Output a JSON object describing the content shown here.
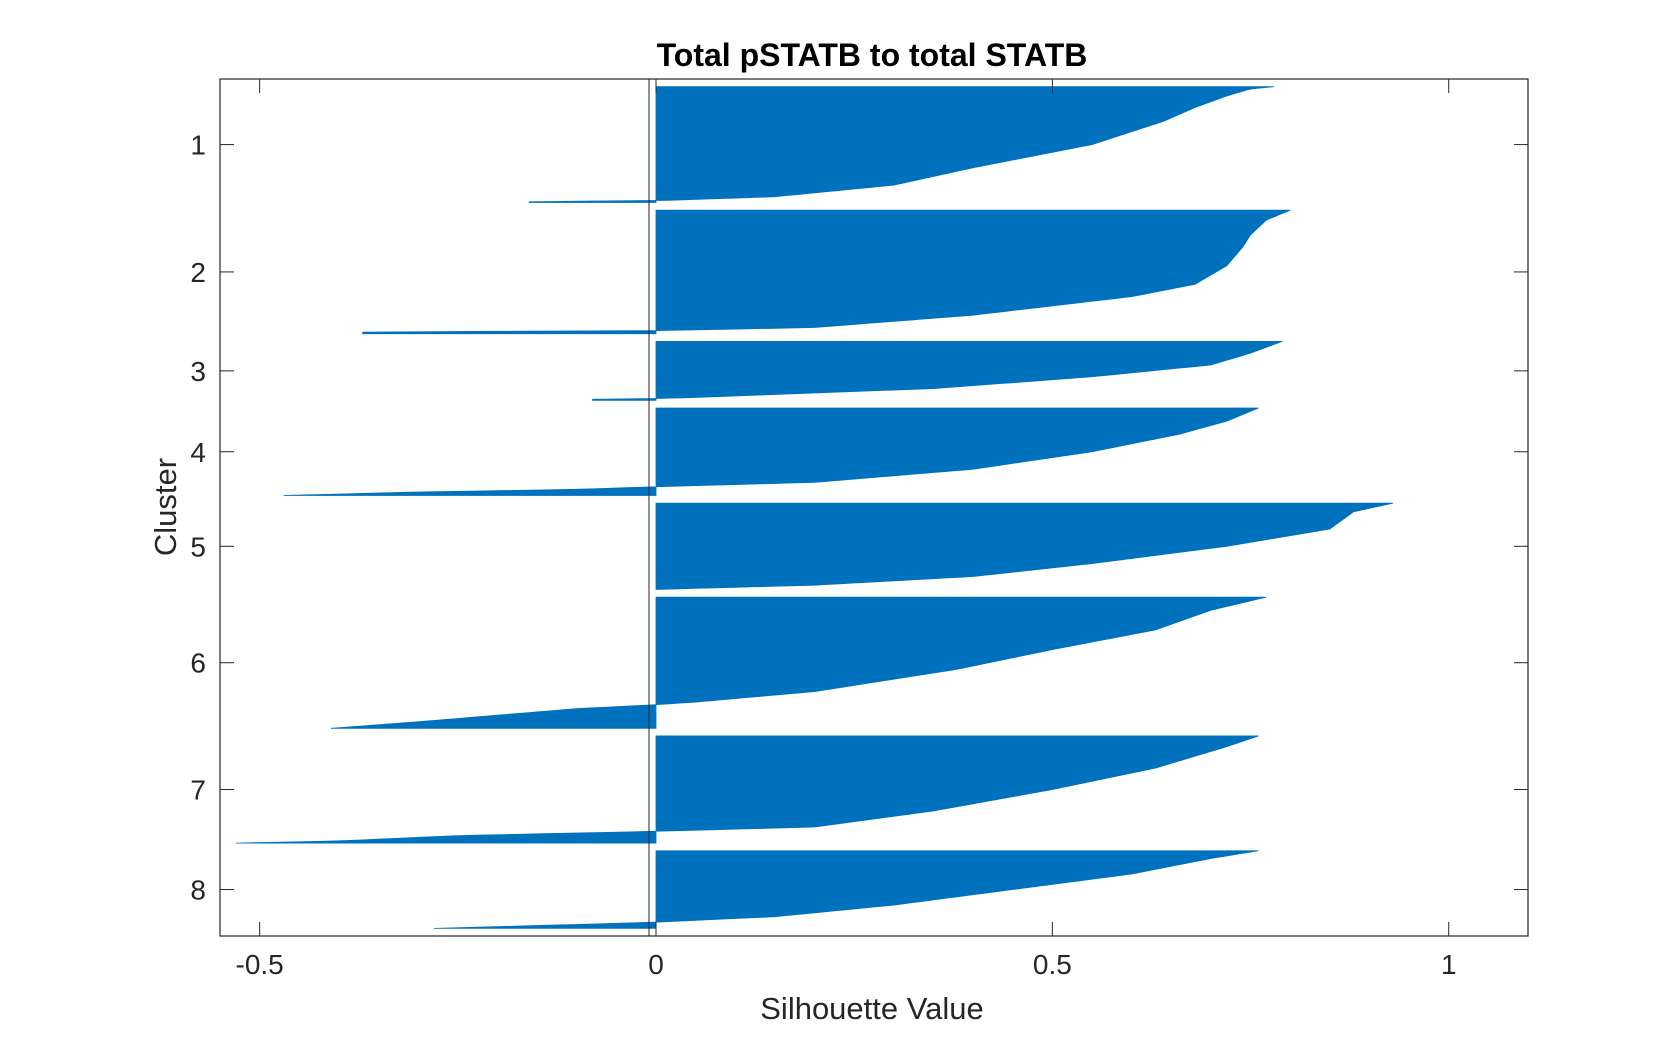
{
  "chart_data": {
    "type": "bar",
    "orientation": "horizontal",
    "title": "Total pSTATB to total STATB",
    "xlabel": "Silhouette Value",
    "ylabel": "Cluster",
    "xlim": [
      -0.55,
      1.1
    ],
    "x_ticks": [
      -0.5,
      0,
      0.5,
      1
    ],
    "x_tick_labels": [
      "-0.5",
      "0",
      "0.5",
      "1"
    ],
    "y_tick_labels": [
      "1",
      "2",
      "3",
      "4",
      "5",
      "6",
      "7",
      "8"
    ],
    "bar_color": "#0072BD",
    "grid": false,
    "clusters": [
      {
        "label": "1",
        "members": 1060,
        "profile": [
          [
            0,
            0.78
          ],
          [
            0.02,
            0.75
          ],
          [
            0.08,
            0.72
          ],
          [
            0.18,
            0.68
          ],
          [
            0.3,
            0.64
          ],
          [
            0.5,
            0.55
          ],
          [
            0.7,
            0.4
          ],
          [
            0.85,
            0.3
          ],
          [
            0.95,
            0.15
          ],
          [
            0.985,
            0.0
          ],
          [
            0.99,
            -0.16
          ],
          [
            1,
            -0.16
          ]
        ]
      },
      {
        "label": "2",
        "members": 1130,
        "profile": [
          [
            0,
            0.8
          ],
          [
            0.08,
            0.77
          ],
          [
            0.2,
            0.75
          ],
          [
            0.3,
            0.74
          ],
          [
            0.45,
            0.72
          ],
          [
            0.6,
            0.68
          ],
          [
            0.7,
            0.6
          ],
          [
            0.85,
            0.4
          ],
          [
            0.95,
            0.2
          ],
          [
            0.975,
            0.0
          ],
          [
            0.985,
            -0.37
          ],
          [
            1,
            -0.37
          ]
        ]
      },
      {
        "label": "3",
        "members": 540,
        "profile": [
          [
            0,
            0.79
          ],
          [
            0.2,
            0.75
          ],
          [
            0.4,
            0.7
          ],
          [
            0.6,
            0.55
          ],
          [
            0.8,
            0.35
          ],
          [
            0.95,
            0.05
          ],
          [
            0.97,
            0.0
          ],
          [
            0.98,
            -0.08
          ],
          [
            1,
            -0.08
          ]
        ]
      },
      {
        "label": "4",
        "members": 800,
        "profile": [
          [
            0,
            0.76
          ],
          [
            0.15,
            0.72
          ],
          [
            0.3,
            0.66
          ],
          [
            0.5,
            0.55
          ],
          [
            0.7,
            0.4
          ],
          [
            0.85,
            0.2
          ],
          [
            0.9,
            0.0
          ],
          [
            0.93,
            -0.1
          ],
          [
            0.96,
            -0.3
          ],
          [
            1,
            -0.47
          ]
        ]
      },
      {
        "label": "5",
        "members": 790,
        "profile": [
          [
            0,
            0.93
          ],
          [
            0.1,
            0.88
          ],
          [
            0.3,
            0.85
          ],
          [
            0.5,
            0.72
          ],
          [
            0.7,
            0.55
          ],
          [
            0.85,
            0.4
          ],
          [
            0.95,
            0.2
          ],
          [
            1,
            0.0
          ]
        ]
      },
      {
        "label": "6",
        "members": 1200,
        "profile": [
          [
            0,
            0.77
          ],
          [
            0.1,
            0.7
          ],
          [
            0.25,
            0.63
          ],
          [
            0.4,
            0.5
          ],
          [
            0.55,
            0.38
          ],
          [
            0.72,
            0.2
          ],
          [
            0.8,
            0.05
          ],
          [
            0.82,
            0.0
          ],
          [
            0.85,
            -0.1
          ],
          [
            0.9,
            -0.2
          ],
          [
            0.95,
            -0.3
          ],
          [
            1,
            -0.41
          ]
        ]
      },
      {
        "label": "7",
        "members": 980,
        "profile": [
          [
            0,
            0.76
          ],
          [
            0.1,
            0.72
          ],
          [
            0.3,
            0.63
          ],
          [
            0.5,
            0.5
          ],
          [
            0.7,
            0.35
          ],
          [
            0.85,
            0.2
          ],
          [
            0.89,
            0.0
          ],
          [
            0.93,
            -0.25
          ],
          [
            0.98,
            -0.4
          ],
          [
            1,
            -0.53
          ]
        ]
      },
      {
        "label": "8",
        "members": 710,
        "profile": [
          [
            0,
            0.76
          ],
          [
            0.1,
            0.7
          ],
          [
            0.3,
            0.6
          ],
          [
            0.5,
            0.45
          ],
          [
            0.7,
            0.3
          ],
          [
            0.85,
            0.15
          ],
          [
            0.92,
            0.0
          ],
          [
            0.95,
            -0.1
          ],
          [
            1,
            -0.28
          ]
        ]
      }
    ]
  }
}
